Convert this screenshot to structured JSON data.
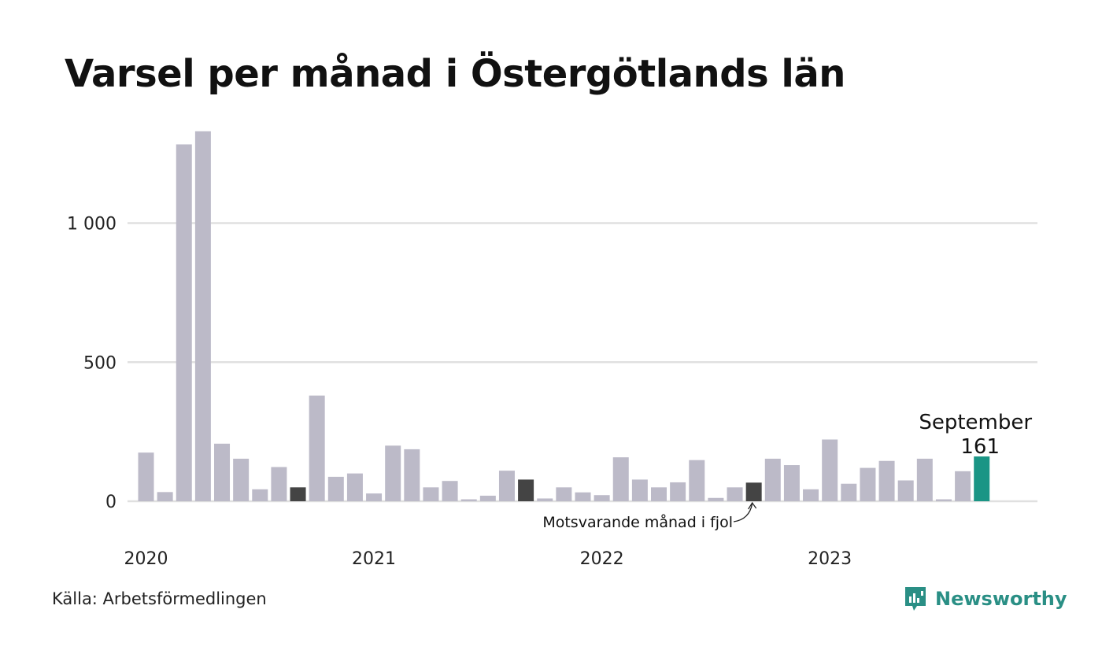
{
  "title": "Varsel per månad i Östergötlands län",
  "source": "Källa: Arbetsförmedlingen",
  "brand": {
    "name": "Newsworthy",
    "icon": "newsworthy-logo-icon"
  },
  "colors": {
    "default": "#bcbac8",
    "comparison": "#444444",
    "highlight": "#1a9585",
    "grid": "#e0e0e0"
  },
  "chart_data": {
    "type": "bar",
    "title": "Varsel per månad i Östergötlands län",
    "x_tick_labels": [
      "2020",
      "2021",
      "2022",
      "2023"
    ],
    "y_ticks": [
      {
        "value": 0,
        "label": "0"
      },
      {
        "value": 500,
        "label": "500"
      },
      {
        "value": 1000,
        "label": "1 000"
      }
    ],
    "ylim": [
      0,
      1360
    ],
    "grid": "horizontal",
    "categories": [
      "2020-01",
      "2020-02",
      "2020-03",
      "2020-04",
      "2020-05",
      "2020-06",
      "2020-07",
      "2020-08",
      "2020-09",
      "2020-10",
      "2020-11",
      "2020-12",
      "2021-01",
      "2021-02",
      "2021-03",
      "2021-04",
      "2021-05",
      "2021-06",
      "2021-07",
      "2021-08",
      "2021-09",
      "2021-10",
      "2021-11",
      "2021-12",
      "2022-01",
      "2022-02",
      "2022-03",
      "2022-04",
      "2022-05",
      "2022-06",
      "2022-07",
      "2022-08",
      "2022-09",
      "2022-10",
      "2022-11",
      "2022-12",
      "2023-01",
      "2023-02",
      "2023-03",
      "2023-04",
      "2023-05",
      "2023-06",
      "2023-07",
      "2023-08",
      "2023-09"
    ],
    "values": [
      175,
      33,
      1283,
      1330,
      207,
      153,
      43,
      123,
      50,
      380,
      88,
      100,
      28,
      200,
      187,
      50,
      73,
      7,
      20,
      110,
      78,
      10,
      50,
      32,
      22,
      158,
      78,
      50,
      68,
      148,
      12,
      50,
      67,
      153,
      130,
      43,
      222,
      63,
      120,
      145,
      75,
      153,
      7,
      108,
      161
    ],
    "comparison_indices": [
      8,
      20,
      32
    ],
    "highlight_index": 44,
    "annotations": {
      "highlight_month": "September",
      "highlight_value": "161",
      "comparison_note": "Motsvarande månad i fjol"
    }
  }
}
